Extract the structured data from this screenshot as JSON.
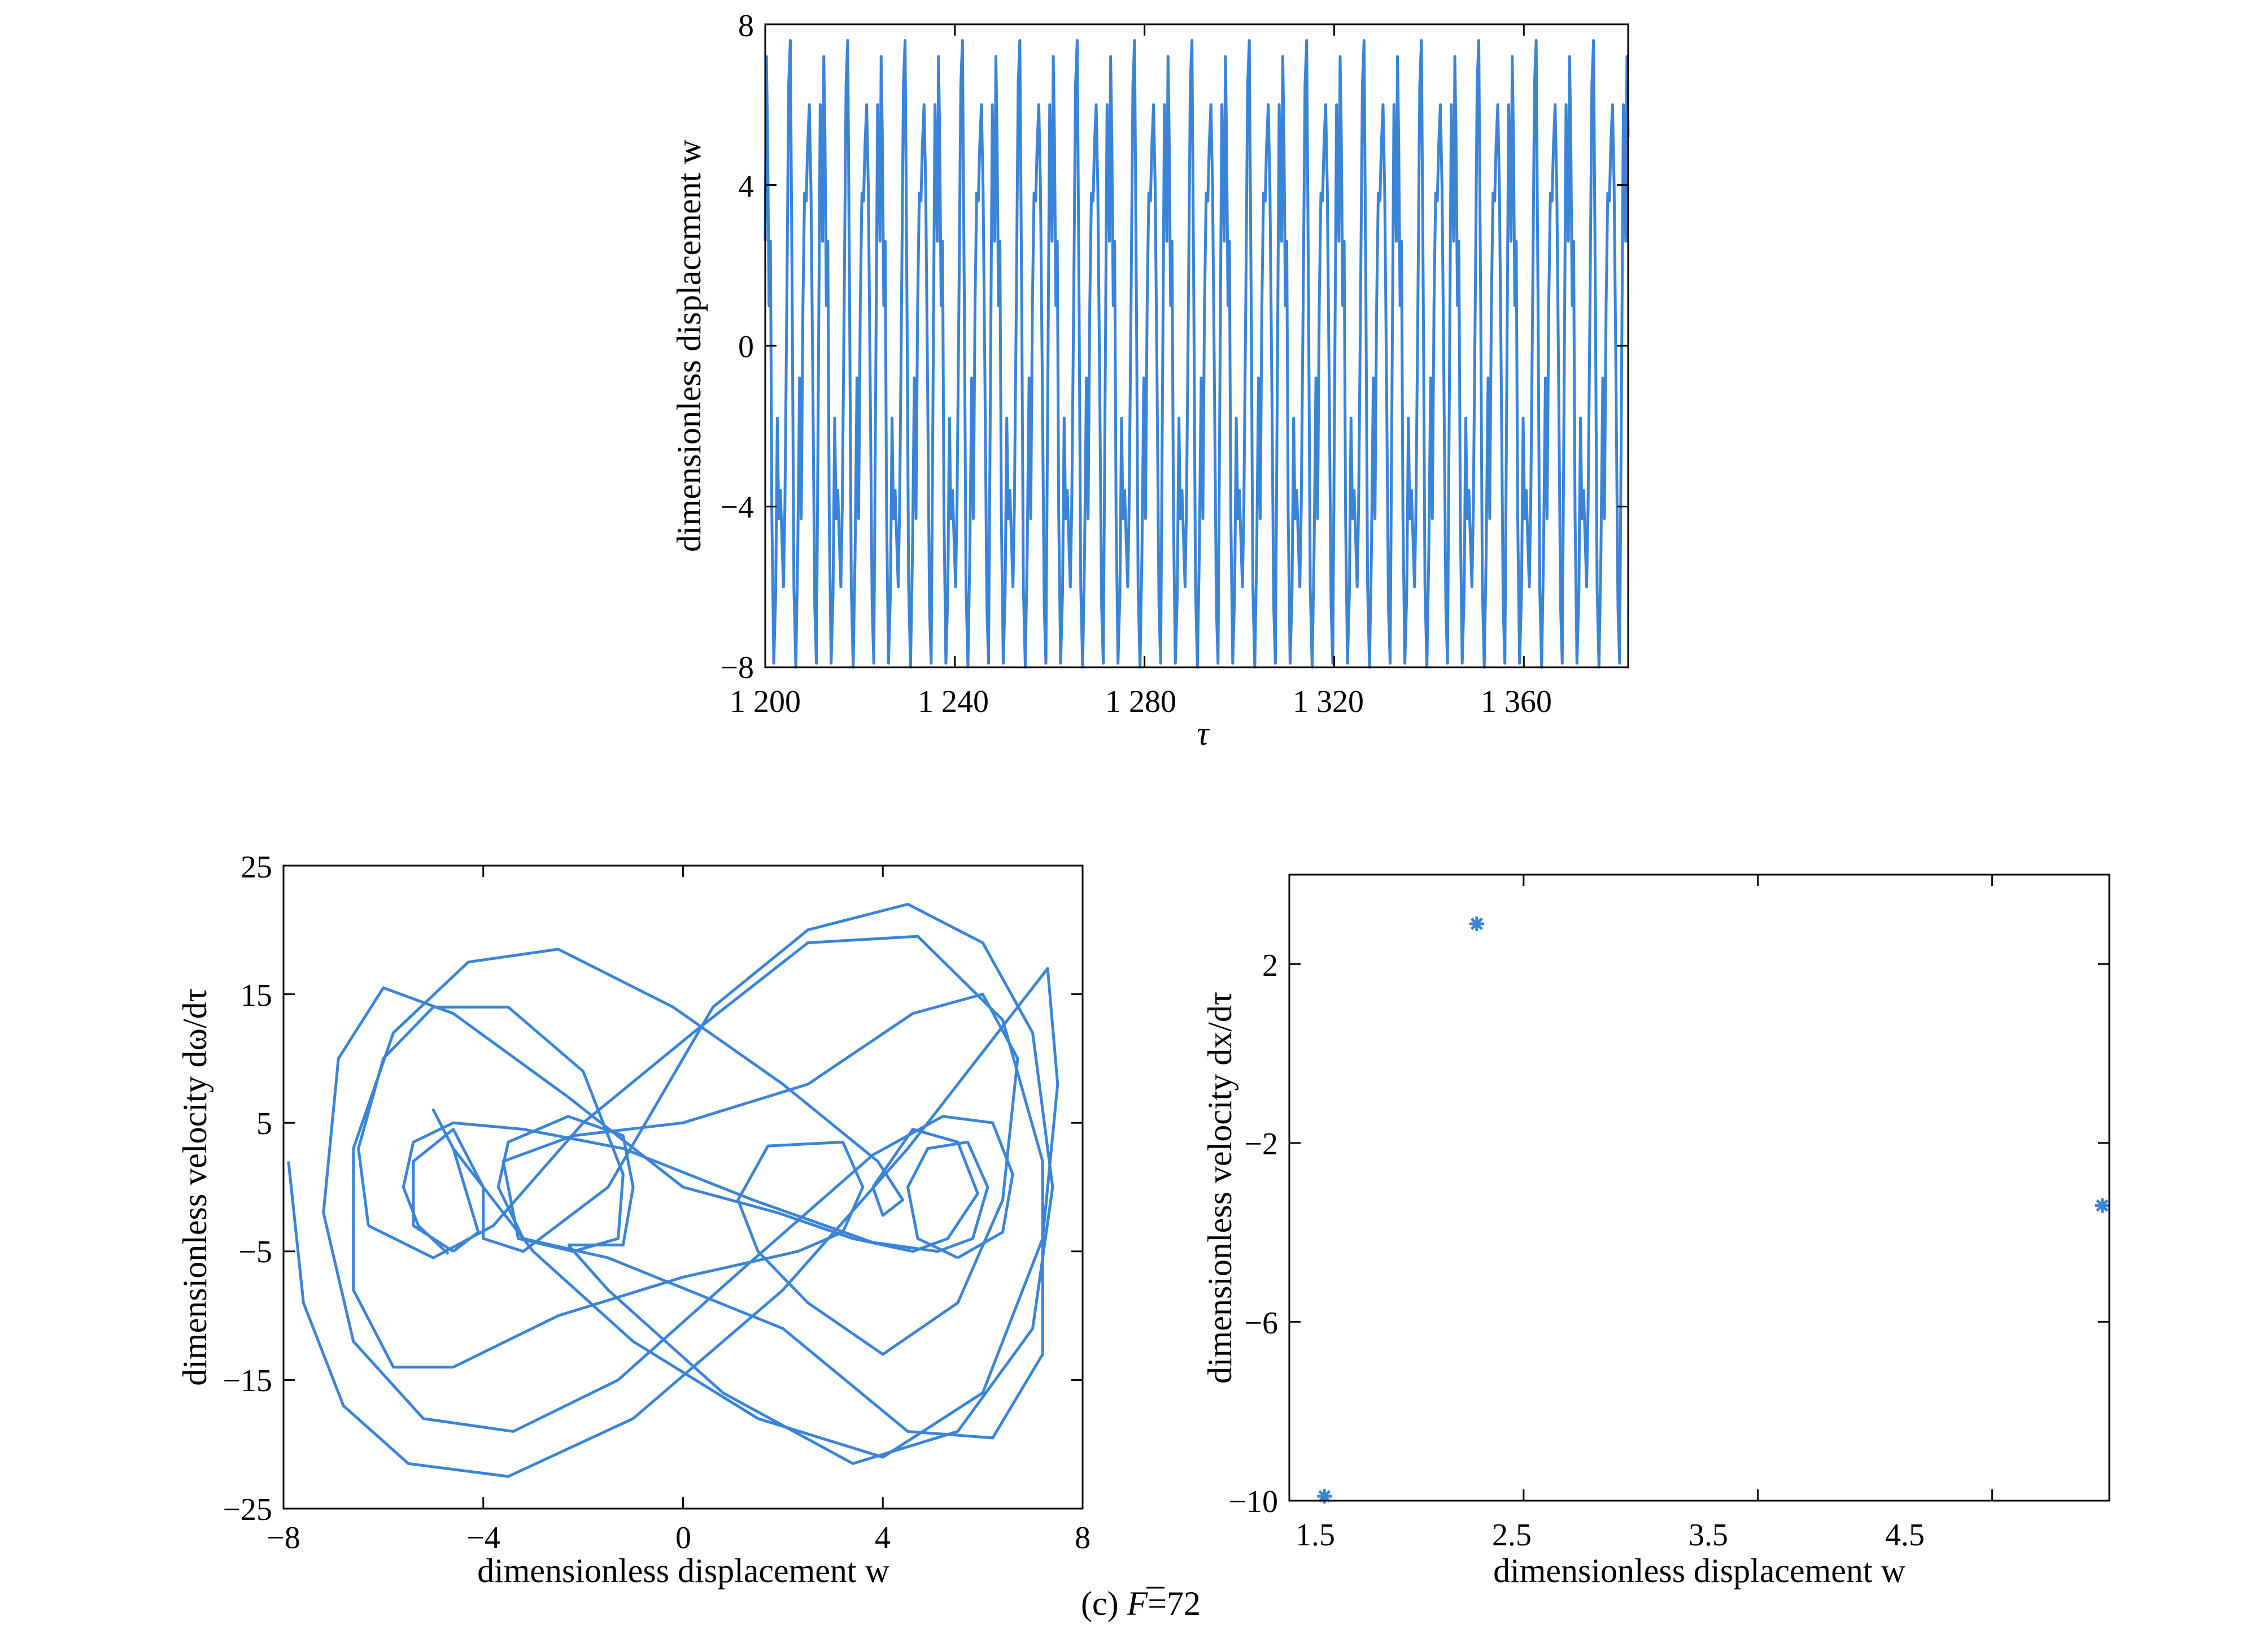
{
  "caption": {
    "prefix": "(c) ",
    "var": "F",
    "suffix": "=72"
  },
  "chart_data": [
    {
      "type": "line",
      "id": "time_history",
      "xlabel": "τ",
      "ylabel": "dimensionless displacement w",
      "xlim": [
        1200,
        1382
      ],
      "ylim": [
        -8,
        8
      ],
      "xticks": [
        1200,
        1240,
        1280,
        1320,
        1360
      ],
      "xtick_labels": [
        "1 200",
        "1 240",
        "1 280",
        "1 320",
        "1 360"
      ],
      "yticks": [
        -8,
        -4,
        0,
        4,
        8
      ],
      "ytick_labels": [
        "−8",
        "−4",
        "0",
        "4",
        "8"
      ],
      "grid": false,
      "period_tau": 12.1,
      "series": [
        {
          "values_one_period": [
            {
              "t": 0.0,
              "y": 2.6
            },
            {
              "t": 0.25,
              "y": 7.2
            },
            {
              "t": 0.5,
              "y": 5.2
            },
            {
              "t": 0.8,
              "y": 1.0
            },
            {
              "t": 1.1,
              "y": 2.6
            },
            {
              "t": 1.4,
              "y": -4.2
            },
            {
              "t": 1.8,
              "y": -7.9
            },
            {
              "t": 2.2,
              "y": -6.2
            },
            {
              "t": 2.55,
              "y": -1.8
            },
            {
              "t": 2.85,
              "y": -4.3
            },
            {
              "t": 3.2,
              "y": -3.6
            },
            {
              "t": 3.55,
              "y": -4.9
            },
            {
              "t": 3.85,
              "y": -6.0
            },
            {
              "t": 4.15,
              "y": -4.0
            },
            {
              "t": 4.55,
              "y": 1.0
            },
            {
              "t": 4.95,
              "y": 6.5
            },
            {
              "t": 5.3,
              "y": 7.6
            },
            {
              "t": 5.7,
              "y": 1.0
            },
            {
              "t": 6.05,
              "y": -6.0
            },
            {
              "t": 6.45,
              "y": -8.0
            },
            {
              "t": 6.85,
              "y": -5.2
            },
            {
              "t": 7.25,
              "y": -0.8
            },
            {
              "t": 7.6,
              "y": -4.3
            },
            {
              "t": 7.95,
              "y": 1.0
            },
            {
              "t": 8.3,
              "y": 3.8
            },
            {
              "t": 8.65,
              "y": 3.6
            },
            {
              "t": 8.95,
              "y": 5.0
            },
            {
              "t": 9.3,
              "y": 6.0
            },
            {
              "t": 9.65,
              "y": 3.9
            },
            {
              "t": 10.05,
              "y": -1.0
            },
            {
              "t": 10.45,
              "y": -6.5
            },
            {
              "t": 10.8,
              "y": -7.9
            },
            {
              "t": 11.2,
              "y": -1.0
            },
            {
              "t": 11.6,
              "y": 6.0
            },
            {
              "t": 12.1,
              "y": 2.6
            }
          ]
        }
      ]
    },
    {
      "type": "line",
      "id": "phase_portrait",
      "xlabel": "dimensionless displacement w",
      "ylabel": "dimensionless velocity dω/dτ",
      "xlim": [
        -8,
        8
      ],
      "ylim": [
        -25,
        25
      ],
      "xticks": [
        -8,
        -4,
        0,
        4,
        8
      ],
      "xtick_labels": [
        "−8",
        "−4",
        "0",
        "4",
        "8"
      ],
      "yticks": [
        -25,
        -15,
        -5,
        5,
        15,
        25
      ],
      "ytick_labels": [
        "−25",
        "−15",
        "−5",
        "5",
        "15",
        "25"
      ],
      "grid": false,
      "series": [
        {
          "points": [
            [
              -7.9,
              2
            ],
            [
              -7.6,
              -9
            ],
            [
              -6.8,
              -17
            ],
            [
              -5.5,
              -21.5
            ],
            [
              -3.5,
              -22.5
            ],
            [
              -1,
              -18
            ],
            [
              2,
              -8
            ],
            [
              4.5,
              3
            ],
            [
              6.5,
              13
            ],
            [
              7.3,
              17
            ],
            [
              7.5,
              8
            ],
            [
              7.2,
              -4
            ],
            [
              6,
              -16
            ],
            [
              4,
              -21
            ],
            [
              1.5,
              -18
            ],
            [
              -1,
              -12
            ],
            [
              -3,
              -5
            ],
            [
              -4.6,
              3
            ],
            [
              -5,
              6
            ],
            [
              -4.6,
              3
            ],
            [
              -4.1,
              -3.5
            ],
            [
              -4.6,
              -5
            ]
          ]
        },
        {
          "points": [
            [
              -4.6,
              -5
            ],
            [
              -5.4,
              -3
            ],
            [
              -5.4,
              2
            ],
            [
              -4.6,
              4.5
            ],
            [
              -4,
              0
            ],
            [
              -4,
              -4
            ],
            [
              -3.2,
              -5
            ],
            [
              -1.5,
              0
            ],
            [
              0.6,
              14
            ],
            [
              2.5,
              20
            ],
            [
              4.5,
              22
            ],
            [
              6,
              19
            ],
            [
              7,
              12
            ],
            [
              7.4,
              0
            ],
            [
              7,
              -11
            ],
            [
              5.5,
              -19
            ],
            [
              3.4,
              -21.5
            ],
            [
              0.8,
              -16
            ],
            [
              -1.5,
              -8
            ],
            [
              -2.3,
              -4.5
            ]
          ]
        },
        {
          "points": [
            [
              -2.3,
              -4.5
            ],
            [
              -1.2,
              -4.5
            ],
            [
              -1,
              0
            ],
            [
              -1.2,
              4
            ],
            [
              -2.3,
              5.5
            ],
            [
              -3.5,
              3.5
            ],
            [
              -3.7,
              0
            ],
            [
              -3.2,
              -4
            ],
            [
              -1.5,
              -5.5
            ],
            [
              2,
              -11
            ],
            [
              4.5,
              -19
            ],
            [
              6.2,
              -19.5
            ],
            [
              7.2,
              -13
            ],
            [
              7.2,
              2
            ],
            [
              6.4,
              13
            ],
            [
              4.7,
              19.5
            ],
            [
              2.5,
              19
            ],
            [
              0.2,
              12
            ],
            [
              -2,
              5
            ],
            [
              -3.8,
              -3
            ],
            [
              -5,
              -5.5
            ],
            [
              -6.3,
              -3
            ]
          ]
        },
        {
          "points": [
            [
              -6.3,
              -3
            ],
            [
              -6.5,
              3
            ],
            [
              -6,
              10
            ],
            [
              -5,
              14
            ],
            [
              -3.5,
              14
            ],
            [
              -2,
              9
            ],
            [
              -1.2,
              1
            ],
            [
              -1.3,
              -4
            ],
            [
              -2.2,
              -5
            ],
            [
              -3.3,
              -4
            ],
            [
              -3.6,
              2
            ],
            [
              -2.2,
              4
            ],
            [
              0,
              5
            ],
            [
              2.5,
              8
            ],
            [
              4.6,
              13.5
            ],
            [
              6,
              15
            ],
            [
              6.7,
              10
            ],
            [
              6.4,
              -1
            ],
            [
              5.5,
              -9
            ],
            [
              4,
              -13
            ],
            [
              2.5,
              -9
            ],
            [
              1.5,
              -5
            ]
          ]
        },
        {
          "points": [
            [
              1.5,
              -5
            ],
            [
              1.1,
              -1
            ],
            [
              1.7,
              3.2
            ],
            [
              3.2,
              3.5
            ],
            [
              3.6,
              0
            ],
            [
              3.2,
              -3.5
            ],
            [
              2.3,
              -5
            ],
            [
              0,
              -7
            ],
            [
              -2.5,
              -10
            ],
            [
              -4.6,
              -14
            ],
            [
              -5.8,
              -14
            ],
            [
              -6.6,
              -8
            ],
            [
              -6.6,
              3
            ],
            [
              -5.8,
              12
            ],
            [
              -4.3,
              17.5
            ],
            [
              -2.5,
              18.5
            ],
            [
              -0.2,
              14
            ],
            [
              2,
              8
            ],
            [
              3.9,
              2
            ],
            [
              4.4,
              -1
            ],
            [
              4,
              -2.2
            ],
            [
              3.8,
              0
            ]
          ]
        },
        {
          "points": [
            [
              3.8,
              0
            ],
            [
              4.6,
              4.5
            ],
            [
              5.5,
              3.5
            ],
            [
              5.9,
              -0.5
            ],
            [
              5.3,
              -4
            ],
            [
              4.6,
              -5
            ],
            [
              3.4,
              -4
            ],
            [
              1.9,
              -2
            ],
            [
              0,
              0
            ],
            [
              -2.3,
              7
            ],
            [
              -4.6,
              13.5
            ],
            [
              -6,
              15.5
            ],
            [
              -6.9,
              10
            ],
            [
              -7.2,
              -2
            ],
            [
              -6.6,
              -12
            ],
            [
              -5.2,
              -18
            ],
            [
              -3.4,
              -19
            ],
            [
              -1.3,
              -15
            ],
            [
              1.3,
              -6
            ],
            [
              3.8,
              2.5
            ],
            [
              5.2,
              5.5
            ],
            [
              6.2,
              5
            ],
            [
              6.6,
              1
            ],
            [
              6.4,
              -3.5
            ],
            [
              5.5,
              -5.5
            ]
          ]
        },
        {
          "points": [
            [
              5.5,
              -5.5
            ],
            [
              4.7,
              -4
            ],
            [
              4.5,
              0
            ],
            [
              4.9,
              3
            ],
            [
              5.7,
              3.5
            ],
            [
              6.1,
              0
            ],
            [
              5.8,
              -4
            ],
            [
              5.1,
              -5
            ],
            [
              3.8,
              -4.3
            ],
            [
              1.4,
              -1
            ],
            [
              -1.2,
              3
            ],
            [
              -3.2,
              4.5
            ],
            [
              -4.6,
              5
            ],
            [
              -5.4,
              3.5
            ],
            [
              -5.6,
              0
            ],
            [
              -5.3,
              -3
            ],
            [
              -4.7,
              -5.2
            ]
          ]
        }
      ]
    },
    {
      "type": "scatter",
      "id": "poincare_map",
      "xlabel": "dimensionless displacement w",
      "ylabel": "dimensionless velocity dx/dτ",
      "xlim": [
        1.5,
        5.0
      ],
      "ylim": [
        -10,
        4
      ],
      "xticks": [
        1.5,
        2.5,
        3.5,
        4.5
      ],
      "xtick_labels": [
        "1.5",
        "2.5",
        "3.5",
        "4.5"
      ],
      "yticks": [
        -10,
        -6,
        -2,
        2
      ],
      "ytick_labels": [
        "−10",
        "−6",
        "−2",
        "2"
      ],
      "grid": false,
      "marker": "asterisk",
      "series": [
        {
          "points": [
            [
              1.65,
              -9.9
            ],
            [
              2.3,
              2.9
            ],
            [
              4.97,
              -3.4
            ]
          ]
        }
      ]
    }
  ]
}
